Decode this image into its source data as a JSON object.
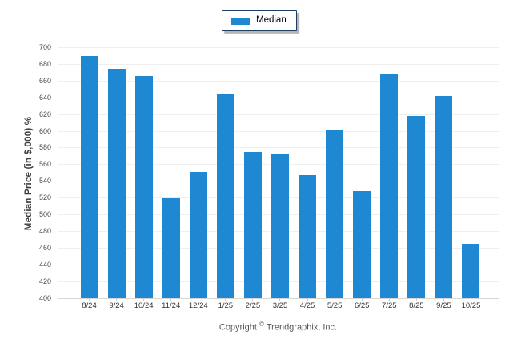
{
  "legend": {
    "items": [
      {
        "label": "Median",
        "color": "#1e88d2"
      }
    ]
  },
  "footer": {
    "copyright_prefix": "Copyright",
    "copyright_symbol": "©",
    "copyright_suffix": "Trendgraphix, Inc."
  },
  "chart_data": {
    "type": "bar",
    "title": "",
    "categories": [
      "8/24",
      "9/24",
      "10/24",
      "11/24",
      "12/24",
      "1/25",
      "2/25",
      "3/25",
      "4/25",
      "5/25",
      "6/25",
      "7/25",
      "8/25",
      "9/25",
      "10/25"
    ],
    "series": [
      {
        "name": "Median",
        "color": "#1e88d2",
        "values": [
          690,
          675,
          666,
          520,
          551,
          644,
          575,
          572,
          547,
          602,
          528,
          668,
          618,
          642,
          465
        ]
      }
    ],
    "xlabel": "",
    "ylabel": "Median Price (in $,000) %",
    "ylim": [
      400,
      700
    ],
    "ytick_step": 20,
    "grid": "horizontal",
    "legend_position": "top-center",
    "gridline_color": "#efefef",
    "axis_label_color": "#4a4a4a"
  }
}
